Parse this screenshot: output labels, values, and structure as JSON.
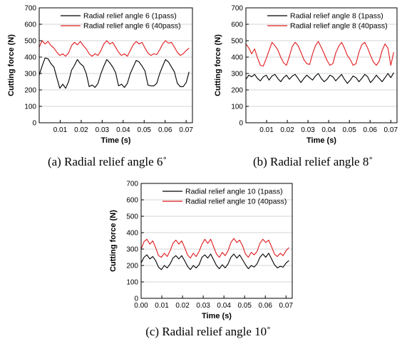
{
  "chart_data": [
    {
      "type": "line",
      "caption": "(a) Radial relief angle 6˚",
      "xlabel": "Time (s)",
      "ylabel": "Cutting force (N)",
      "xlim": [
        0.0,
        0.073
      ],
      "ylim": [
        0,
        700
      ],
      "xticks": [
        "0.01",
        "0.02",
        "0.03",
        "0.04",
        "0.05",
        "0.06",
        "0.07"
      ],
      "yticks": [
        "0",
        "100",
        "200",
        "300",
        "400",
        "500",
        "600",
        "700"
      ],
      "grid": "horizontal",
      "legend": "top-left",
      "series": [
        {
          "name": "Radial relief angle 6 (1pass)",
          "color": "#000000",
          "x": [
            0.0,
            0.0014,
            0.0028,
            0.0042,
            0.0056,
            0.007,
            0.0084,
            0.0098,
            0.0112,
            0.0126,
            0.014,
            0.0154,
            0.0168,
            0.0182,
            0.0196,
            0.021,
            0.0224,
            0.0238,
            0.0252,
            0.0266,
            0.028,
            0.0294,
            0.0308,
            0.0322,
            0.0336,
            0.035,
            0.0364,
            0.0378,
            0.0392,
            0.0406,
            0.042,
            0.0434,
            0.0448,
            0.0462,
            0.0476,
            0.049,
            0.0504,
            0.0518,
            0.0532,
            0.0546,
            0.056,
            0.0574,
            0.0588,
            0.0602,
            0.0616,
            0.063,
            0.0644,
            0.0658,
            0.0672,
            0.0686,
            0.07,
            0.0714
          ],
          "y": [
            290,
            345,
            395,
            390,
            360,
            340,
            275,
            210,
            235,
            210,
            250,
            320,
            350,
            385,
            360,
            345,
            300,
            220,
            230,
            215,
            240,
            300,
            345,
            385,
            365,
            340,
            305,
            225,
            235,
            215,
            240,
            300,
            340,
            380,
            370,
            345,
            315,
            230,
            225,
            225,
            240,
            300,
            345,
            385,
            370,
            340,
            310,
            240,
            220,
            220,
            245,
            310
          ]
        },
        {
          "name": "Radial relief angle 6 (40pass)",
          "color": "#e0191c",
          "x": [
            0.0,
            0.0014,
            0.0028,
            0.0042,
            0.0056,
            0.007,
            0.0084,
            0.0098,
            0.0112,
            0.0126,
            0.014,
            0.0154,
            0.0168,
            0.0182,
            0.0196,
            0.021,
            0.0224,
            0.0238,
            0.0252,
            0.0266,
            0.028,
            0.0294,
            0.0308,
            0.0322,
            0.0336,
            0.035,
            0.0364,
            0.0378,
            0.0392,
            0.0406,
            0.042,
            0.0434,
            0.0448,
            0.0462,
            0.0476,
            0.049,
            0.0504,
            0.0518,
            0.0532,
            0.0546,
            0.056,
            0.0574,
            0.0588,
            0.0602,
            0.0616,
            0.063,
            0.0644,
            0.0658,
            0.0672,
            0.0686,
            0.07,
            0.0714
          ],
          "y": [
            460,
            500,
            480,
            495,
            470,
            455,
            430,
            410,
            420,
            405,
            425,
            470,
            490,
            475,
            495,
            470,
            450,
            420,
            405,
            420,
            410,
            440,
            480,
            500,
            480,
            490,
            460,
            430,
            410,
            420,
            405,
            440,
            475,
            495,
            480,
            490,
            455,
            425,
            410,
            420,
            415,
            445,
            480,
            500,
            485,
            490,
            460,
            430,
            410,
            420,
            440,
            455
          ]
        }
      ]
    },
    {
      "type": "line",
      "caption": "(b) Radial relief angle 8˚",
      "xlabel": "Time (s)",
      "ylabel": "Cutting force (N)",
      "xlim": [
        0.0,
        0.073
      ],
      "ylim": [
        0,
        700
      ],
      "xticks": [
        "0.01",
        "0.02",
        "0.03",
        "0.04",
        "0.05",
        "0.06",
        "0.07"
      ],
      "yticks": [
        "0",
        "100",
        "200",
        "300",
        "400",
        "500",
        "600",
        "700"
      ],
      "grid": "horizontal",
      "legend": "top-left",
      "series": [
        {
          "name": "Radial relief angle 8 (1pass)",
          "color": "#000000",
          "x": [
            0.0,
            0.0014,
            0.0028,
            0.0042,
            0.0056,
            0.007,
            0.0084,
            0.0098,
            0.0112,
            0.0126,
            0.014,
            0.0154,
            0.0168,
            0.0182,
            0.0196,
            0.021,
            0.0224,
            0.0238,
            0.0252,
            0.0266,
            0.028,
            0.0294,
            0.0308,
            0.0322,
            0.0336,
            0.035,
            0.0364,
            0.0378,
            0.0392,
            0.0406,
            0.042,
            0.0434,
            0.0448,
            0.0462,
            0.0476,
            0.049,
            0.0504,
            0.0518,
            0.0532,
            0.0546,
            0.056,
            0.0574,
            0.0588,
            0.0602,
            0.0616,
            0.063,
            0.0644,
            0.0658,
            0.0672,
            0.0686,
            0.07,
            0.0714
          ],
          "y": [
            265,
            290,
            280,
            295,
            270,
            255,
            280,
            290,
            260,
            285,
            295,
            270,
            250,
            275,
            290,
            265,
            285,
            295,
            270,
            245,
            270,
            290,
            275,
            260,
            285,
            300,
            270,
            250,
            265,
            290,
            280,
            255,
            275,
            295,
            265,
            240,
            260,
            285,
            275,
            250,
            270,
            295,
            280,
            245,
            265,
            290,
            270,
            250,
            275,
            300,
            275,
            305
          ]
        },
        {
          "name": "Radial relief angle 8 (40pass)",
          "color": "#e0191c",
          "x": [
            0.0,
            0.0014,
            0.0028,
            0.0042,
            0.0056,
            0.007,
            0.0084,
            0.0098,
            0.0112,
            0.0126,
            0.014,
            0.0154,
            0.0168,
            0.0182,
            0.0196,
            0.021,
            0.0224,
            0.0238,
            0.0252,
            0.0266,
            0.028,
            0.0294,
            0.0308,
            0.0322,
            0.0336,
            0.035,
            0.0364,
            0.0378,
            0.0392,
            0.0406,
            0.042,
            0.0434,
            0.0448,
            0.0462,
            0.0476,
            0.049,
            0.0504,
            0.0518,
            0.0532,
            0.0546,
            0.056,
            0.0574,
            0.0588,
            0.0602,
            0.0616,
            0.063,
            0.0644,
            0.0658,
            0.0672,
            0.0686,
            0.07,
            0.0714
          ],
          "y": [
            480,
            455,
            420,
            450,
            395,
            350,
            345,
            390,
            440,
            490,
            470,
            445,
            400,
            365,
            350,
            405,
            465,
            490,
            470,
            430,
            385,
            360,
            355,
            420,
            470,
            495,
            460,
            420,
            380,
            350,
            360,
            425,
            465,
            490,
            455,
            410,
            385,
            350,
            360,
            430,
            475,
            490,
            455,
            410,
            370,
            350,
            375,
            440,
            480,
            455,
            350,
            430
          ]
        }
      ]
    },
    {
      "type": "line",
      "caption": "(c) Radial relief angle 10˚",
      "xlabel": "Time (s)",
      "ylabel": "Cutting force (N)",
      "xlim": [
        0.0,
        0.073
      ],
      "ylim": [
        0,
        700
      ],
      "xticks": [
        "0.00",
        "0.01",
        "0.02",
        "0.03",
        "0.04",
        "0.05",
        "0.06",
        "0.07"
      ],
      "yticks": [
        "0",
        "100",
        "200",
        "300",
        "400",
        "500",
        "600",
        "700"
      ],
      "grid": "horizontal",
      "legend": "top-left",
      "series": [
        {
          "name": "Radial relief angle 10 (1pass)",
          "color": "#000000",
          "x": [
            0.0,
            0.0014,
            0.0028,
            0.0042,
            0.0056,
            0.007,
            0.0084,
            0.0098,
            0.0112,
            0.0126,
            0.014,
            0.0154,
            0.0168,
            0.0182,
            0.0196,
            0.021,
            0.0224,
            0.0238,
            0.0252,
            0.0266,
            0.028,
            0.0294,
            0.0308,
            0.0322,
            0.0336,
            0.035,
            0.0364,
            0.0378,
            0.0392,
            0.0406,
            0.042,
            0.0434,
            0.0448,
            0.0462,
            0.0476,
            0.049,
            0.0504,
            0.0518,
            0.0532,
            0.0546,
            0.056,
            0.0574,
            0.0588,
            0.0602,
            0.0616,
            0.063,
            0.0644,
            0.0658,
            0.0672,
            0.0686,
            0.07,
            0.0714
          ],
          "y": [
            215,
            250,
            265,
            240,
            255,
            230,
            190,
            175,
            200,
            185,
            210,
            245,
            260,
            240,
            260,
            230,
            195,
            175,
            200,
            185,
            205,
            250,
            265,
            245,
            270,
            235,
            200,
            180,
            205,
            185,
            210,
            250,
            270,
            245,
            265,
            235,
            205,
            180,
            200,
            190,
            210,
            250,
            270,
            250,
            275,
            240,
            205,
            185,
            195,
            190,
            215,
            230
          ]
        },
        {
          "name": "Radial relief angle 10 (40pass)",
          "color": "#e0191c",
          "x": [
            0.0,
            0.0014,
            0.0028,
            0.0042,
            0.0056,
            0.007,
            0.0084,
            0.0098,
            0.0112,
            0.0126,
            0.014,
            0.0154,
            0.0168,
            0.0182,
            0.0196,
            0.021,
            0.0224,
            0.0238,
            0.0252,
            0.0266,
            0.028,
            0.0294,
            0.0308,
            0.0322,
            0.0336,
            0.035,
            0.0364,
            0.0378,
            0.0392,
            0.0406,
            0.042,
            0.0434,
            0.0448,
            0.0462,
            0.0476,
            0.049,
            0.0504,
            0.0518,
            0.0532,
            0.0546,
            0.056,
            0.0574,
            0.0588,
            0.0602,
            0.0616,
            0.063,
            0.0644,
            0.0658,
            0.0672,
            0.0686,
            0.07,
            0.0714
          ],
          "y": [
            300,
            345,
            360,
            330,
            350,
            310,
            260,
            250,
            275,
            255,
            290,
            335,
            355,
            330,
            350,
            310,
            265,
            245,
            275,
            255,
            285,
            330,
            360,
            335,
            360,
            315,
            270,
            250,
            280,
            260,
            290,
            340,
            365,
            340,
            355,
            320,
            270,
            250,
            280,
            265,
            285,
            335,
            360,
            340,
            355,
            315,
            270,
            255,
            275,
            260,
            290,
            310
          ]
        }
      ]
    }
  ]
}
